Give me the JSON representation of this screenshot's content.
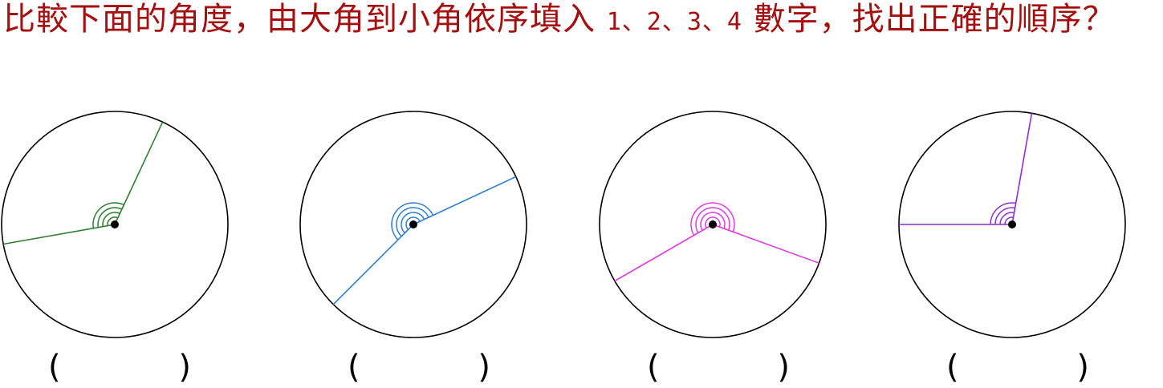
{
  "question": {
    "text_part1": "比較下面的角度，由大角到小角依序填入 ",
    "numbers": "1、2、3、4",
    "text_part2": " 數字，找出正確的順序？"
  },
  "answer_blank": {
    "left": "(",
    "right": ")"
  },
  "figures": [
    {
      "name": "angle-1",
      "color": "#2e7d32",
      "ray1_deg": 65,
      "ray2_deg": 190
    },
    {
      "name": "angle-2",
      "color": "#2f7fd0",
      "ray1_deg": 25,
      "ray2_deg": 225
    },
    {
      "name": "angle-3",
      "color": "#e03ce0",
      "ray1_deg": 340,
      "ray2_deg": 210
    },
    {
      "name": "angle-4",
      "color": "#8e2fcf",
      "ray1_deg": 80,
      "ray2_deg": 180
    }
  ]
}
